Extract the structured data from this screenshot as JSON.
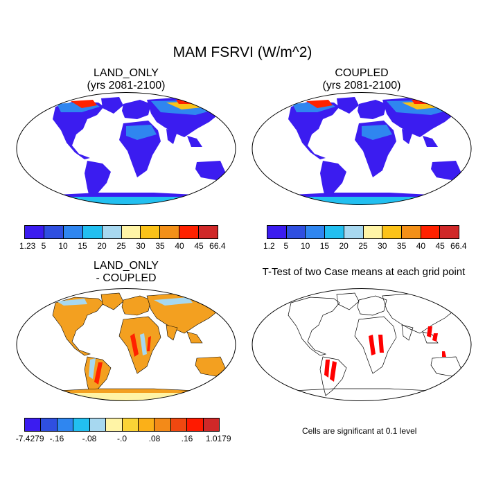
{
  "main_title": "MAM FSRVI (W/m^2)",
  "panels": {
    "land_only": {
      "title": "LAND_ONLY\n(yrs 2081-2100)"
    },
    "coupled": {
      "title": "COUPLED\n(yrs 2081-2100)"
    },
    "difference": {
      "title": "LAND_ONLY\n- COUPLED"
    },
    "ttest": {
      "title": "T-Test of two Case means at each grid point",
      "note": "Cells are significant at 0.1 level"
    }
  },
  "colorbars": {
    "land_only": {
      "colors": [
        "#3b1cf0",
        "#2f4fe0",
        "#2f86f0",
        "#22bff0",
        "#a7d8f0",
        "#fff4a6",
        "#fbc218",
        "#f39018",
        "#ff2200",
        "#d02828"
      ],
      "labels": [
        "1.23",
        "5",
        "10",
        "15",
        "20",
        "25",
        "30",
        "35",
        "40",
        "45",
        "66.4"
      ]
    },
    "coupled": {
      "colors": [
        "#3b1cf0",
        "#2f4fe0",
        "#2f86f0",
        "#22bff0",
        "#a7d8f0",
        "#fff4a6",
        "#fbc218",
        "#f39018",
        "#ff2200",
        "#d02828"
      ],
      "labels": [
        "1.2",
        "5",
        "10",
        "15",
        "20",
        "25",
        "30",
        "35",
        "40",
        "45",
        "66.4"
      ]
    },
    "difference": {
      "colors": [
        "#3b1cf0",
        "#2f4fe0",
        "#2f86f0",
        "#22bff0",
        "#a7d8f0",
        "#fff4a6",
        "#fbd436",
        "#fbb018",
        "#f38a18",
        "#f04810",
        "#ff1a00",
        "#d02828"
      ],
      "labels": [
        "-7.4279",
        "-.16",
        "-.08",
        "-.0",
        ".08",
        ".16",
        "1.0179"
      ]
    }
  },
  "map_colors": {
    "ocean": "#ffffff",
    "outline": "#000000",
    "low": "#3b1cf0",
    "mid": "#2f86f0",
    "warm": "#fbc218",
    "high": "#ff2200",
    "diff_base": "#f3a020",
    "diff_light": "#a7d8f0",
    "antarctica_diff": "#fff4a6",
    "significant": "#ff0000"
  }
}
